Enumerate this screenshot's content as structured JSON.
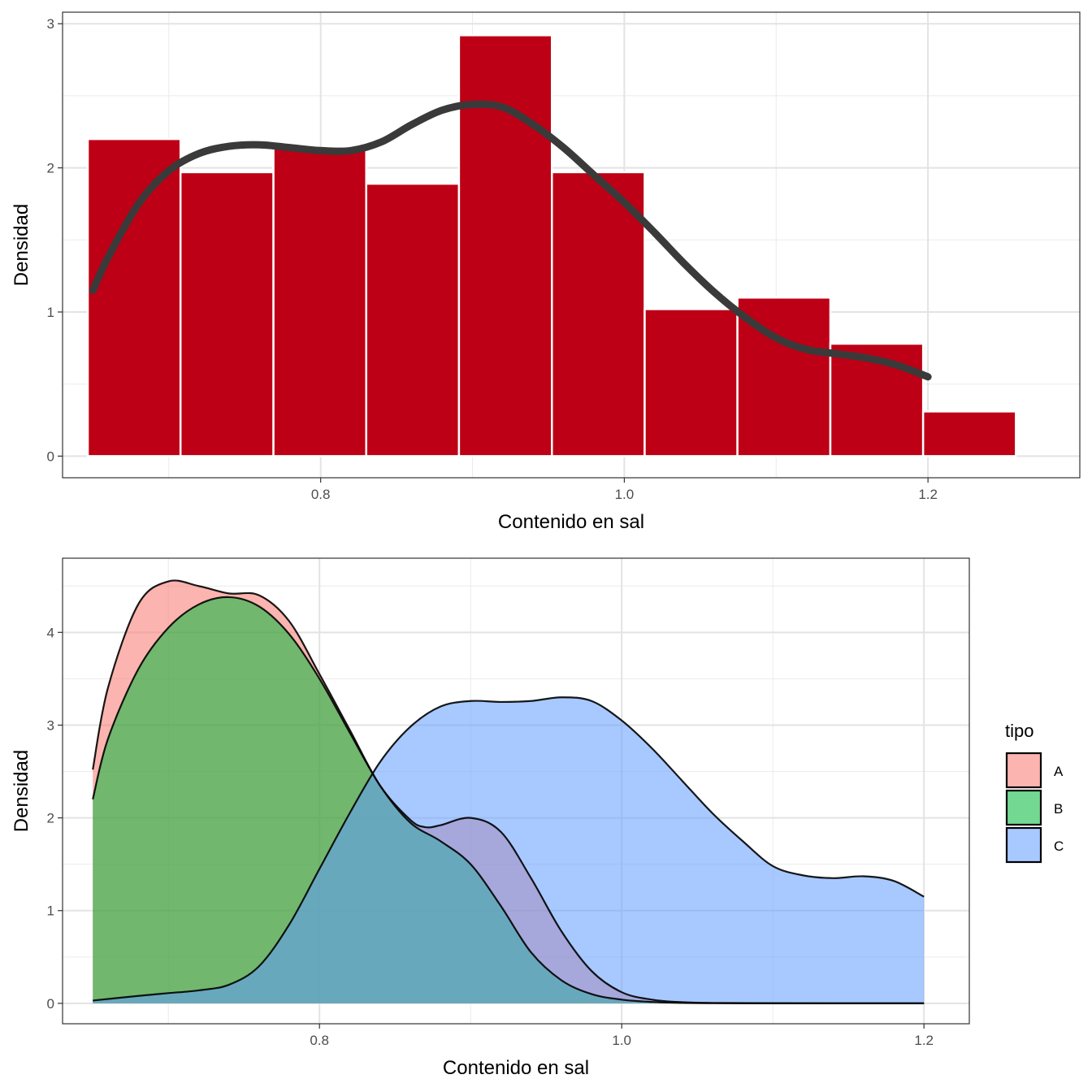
{
  "chart_data": [
    {
      "type": "bar",
      "subtype": "histogram_with_density",
      "xlabel": "Contenido en sal",
      "ylabel": "Densidad",
      "xlim": [
        0.63,
        1.3
      ],
      "ylim": [
        -0.15,
        3.08
      ],
      "x_ticks": [
        0.8,
        1.0,
        1.2
      ],
      "x_tick_labels": [
        "0.8",
        "1.0",
        "1.2"
      ],
      "y_ticks": [
        0,
        1,
        2,
        3
      ],
      "y_tick_labels": [
        "0",
        "1",
        "2",
        "3"
      ],
      "grid": true,
      "colors": {
        "bar_fill": "#bd0015",
        "bar_edge": "#ffffff",
        "density_line": "#3a3a3a",
        "grid": "#ebebeb",
        "panel_border": "#333333"
      },
      "bins": [
        {
          "x0": 0.6466,
          "x1": 0.7077,
          "value": 2.2
        },
        {
          "x0": 0.7077,
          "x1": 0.7689,
          "value": 1.97
        },
        {
          "x0": 0.7689,
          "x1": 0.83,
          "value": 2.14
        },
        {
          "x0": 0.83,
          "x1": 0.8911,
          "value": 1.89
        },
        {
          "x0": 0.8911,
          "x1": 0.9523,
          "value": 2.92
        },
        {
          "x0": 0.9523,
          "x1": 1.0134,
          "value": 1.97
        },
        {
          "x0": 1.0134,
          "x1": 1.0745,
          "value": 1.02
        },
        {
          "x0": 1.0745,
          "x1": 1.1357,
          "value": 1.1
        },
        {
          "x0": 1.1357,
          "x1": 1.1968,
          "value": 0.78
        },
        {
          "x0": 1.1968,
          "x1": 1.2579,
          "value": 0.31
        }
      ],
      "density": {
        "x": [
          0.65,
          0.66,
          0.68,
          0.7,
          0.72,
          0.74,
          0.76,
          0.78,
          0.8,
          0.82,
          0.84,
          0.86,
          0.88,
          0.9,
          0.92,
          0.94,
          0.96,
          0.98,
          1.0,
          1.02,
          1.04,
          1.06,
          1.08,
          1.1,
          1.12,
          1.14,
          1.16,
          1.18,
          1.2
        ],
        "y": [
          1.15,
          1.38,
          1.75,
          1.98,
          2.1,
          2.15,
          2.16,
          2.14,
          2.12,
          2.12,
          2.18,
          2.3,
          2.4,
          2.44,
          2.42,
          2.3,
          2.14,
          1.95,
          1.76,
          1.55,
          1.33,
          1.13,
          0.96,
          0.82,
          0.74,
          0.71,
          0.68,
          0.63,
          0.55
        ]
      }
    },
    {
      "type": "area",
      "subtype": "overlapping_density",
      "xlabel": "Contenido en sal",
      "ylabel": "Densidad",
      "xlim": [
        0.63,
        1.23
      ],
      "ylim": [
        -0.22,
        4.8
      ],
      "x_ticks": [
        0.8,
        1.0,
        1.2
      ],
      "x_tick_labels": [
        "0.8",
        "1.0",
        "1.2"
      ],
      "y_ticks": [
        0,
        1,
        2,
        3,
        4
      ],
      "y_tick_labels": [
        "0",
        "1",
        "2",
        "3",
        "4"
      ],
      "grid": true,
      "legend": {
        "title": "tipo",
        "position": "right"
      },
      "series": [
        {
          "name": "A",
          "color": "#f8766d",
          "x": [
            0.65,
            0.66,
            0.68,
            0.7,
            0.72,
            0.74,
            0.76,
            0.78,
            0.8,
            0.82,
            0.84,
            0.86,
            0.87,
            0.88,
            0.9,
            0.92,
            0.94,
            0.96,
            0.98,
            1.0,
            1.02,
            1.04,
            1.06,
            1.1,
            1.15,
            1.2
          ],
          "y": [
            2.52,
            3.4,
            4.3,
            4.55,
            4.5,
            4.42,
            4.4,
            4.12,
            3.55,
            2.95,
            2.35,
            1.98,
            1.9,
            1.92,
            2.0,
            1.85,
            1.35,
            0.78,
            0.35,
            0.12,
            0.04,
            0.012,
            0.004,
            0.001,
            0.0,
            0.0
          ]
        },
        {
          "name": "B",
          "color": "#00ba38",
          "x": [
            0.65,
            0.66,
            0.68,
            0.7,
            0.72,
            0.74,
            0.76,
            0.78,
            0.8,
            0.82,
            0.84,
            0.86,
            0.88,
            0.9,
            0.92,
            0.94,
            0.96,
            0.98,
            1.0,
            1.02,
            1.04,
            1.06,
            1.1,
            1.15,
            1.2
          ],
          "y": [
            2.2,
            2.85,
            3.6,
            4.05,
            4.3,
            4.38,
            4.28,
            3.98,
            3.5,
            2.92,
            2.35,
            1.95,
            1.75,
            1.5,
            1.05,
            0.55,
            0.25,
            0.1,
            0.04,
            0.015,
            0.005,
            0.002,
            0.0,
            0.0,
            0.0
          ]
        },
        {
          "name": "C",
          "color": "#619cff",
          "x": [
            0.65,
            0.68,
            0.7,
            0.72,
            0.74,
            0.76,
            0.78,
            0.8,
            0.82,
            0.84,
            0.86,
            0.88,
            0.9,
            0.92,
            0.94,
            0.96,
            0.98,
            1.0,
            1.02,
            1.04,
            1.06,
            1.08,
            1.1,
            1.12,
            1.14,
            1.16,
            1.18,
            1.2
          ],
          "y": [
            0.03,
            0.08,
            0.11,
            0.14,
            0.2,
            0.4,
            0.85,
            1.45,
            2.05,
            2.6,
            2.98,
            3.2,
            3.26,
            3.25,
            3.26,
            3.3,
            3.26,
            3.05,
            2.75,
            2.4,
            2.05,
            1.75,
            1.48,
            1.38,
            1.35,
            1.37,
            1.32,
            1.15
          ]
        }
      ]
    }
  ]
}
